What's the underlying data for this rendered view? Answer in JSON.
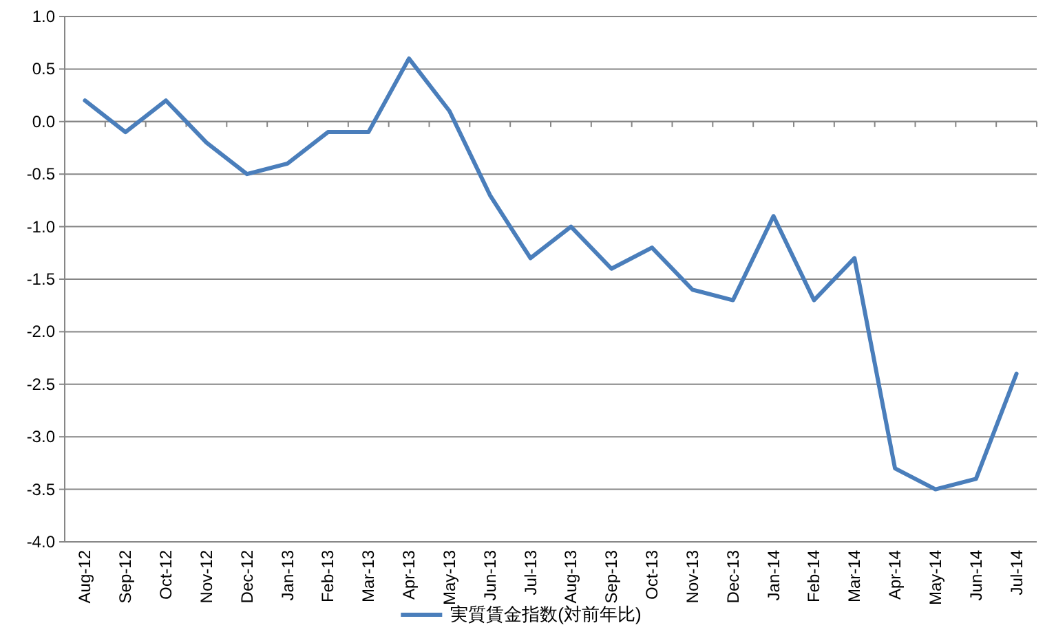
{
  "chart_data": {
    "type": "line",
    "categories": [
      "Aug-12",
      "Sep-12",
      "Oct-12",
      "Nov-12",
      "Dec-12",
      "Jan-13",
      "Feb-13",
      "Mar-13",
      "Apr-13",
      "May-13",
      "Jun-13",
      "Jul-13",
      "Aug-13",
      "Sep-13",
      "Oct-13",
      "Nov-13",
      "Dec-13",
      "Jan-14",
      "Feb-14",
      "Mar-14",
      "Apr-14",
      "May-14",
      "Jun-14",
      "Jul-14"
    ],
    "series": [
      {
        "name": "実質賃金指数(対前年比)",
        "color": "#4a7ebb",
        "values": [
          0.2,
          -0.1,
          0.2,
          -0.2,
          -0.5,
          -0.4,
          -0.1,
          -0.1,
          0.6,
          0.1,
          -0.7,
          -1.3,
          -1.0,
          -1.4,
          -1.2,
          -1.6,
          -1.7,
          -0.9,
          -1.7,
          -1.3,
          -3.3,
          -3.5,
          -3.4,
          -2.4
        ]
      }
    ],
    "ylim": [
      -4,
      1
    ],
    "yticks": [
      {
        "value": -4,
        "label": "-4.0"
      },
      {
        "value": -3.5,
        "label": "-3.5"
      },
      {
        "value": -3,
        "label": "-3.0"
      },
      {
        "value": -2.5,
        "label": "-2.5"
      },
      {
        "value": -2,
        "label": "-2.0"
      },
      {
        "value": -1.5,
        "label": "-1.5"
      },
      {
        "value": -1,
        "label": "-1.0"
      },
      {
        "value": -0.5,
        "label": "-0.5"
      },
      {
        "value": 0,
        "label": "0.0"
      },
      {
        "value": 0.5,
        "label": "0.5"
      },
      {
        "value": 1,
        "label": "1.0"
      }
    ],
    "grid": "y",
    "legend": "bottom",
    "marker": "none",
    "line_style": "solid"
  }
}
